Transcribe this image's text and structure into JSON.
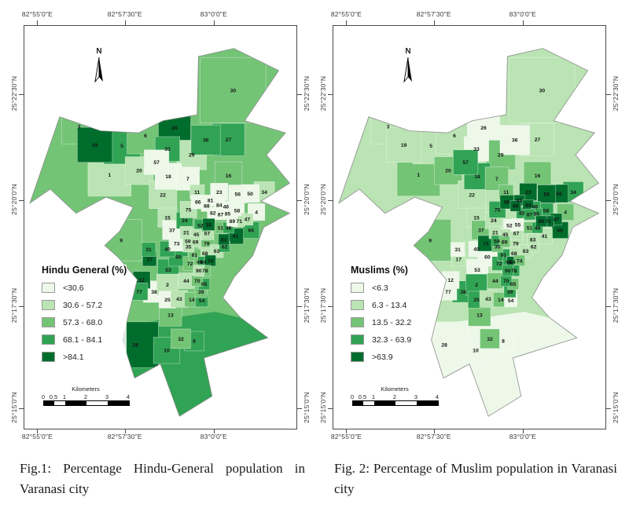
{
  "figure": {
    "north_label": "N",
    "axes": {
      "longitude_labels": [
        "82°55'0\"E",
        "82°57'30\"E",
        "83°0'0\"E"
      ],
      "latitude_labels": [
        "25°22'30\"N",
        "25°20'0\"N",
        "25°17'30\"N",
        "25°15'0\"N"
      ]
    },
    "scale_bar": {
      "title": "Kilometers",
      "ticks": [
        "0",
        "0.5",
        "1",
        "2",
        "3",
        "4"
      ]
    },
    "maps": [
      {
        "id": "hindu",
        "legend_title": "Hindu General (%)",
        "legend_classes": [
          {
            "label": "<30.6",
            "color": "#edf8e9"
          },
          {
            "label": "30.6 - 57.2",
            "color": "#bae4b3"
          },
          {
            "label": "57.3 - 68.0",
            "color": "#74c476"
          },
          {
            "label": "68.1 - 84.1",
            "color": "#31a354"
          },
          {
            "label": ">84.1",
            "color": "#006d2c"
          }
        ],
        "base_color": "#74c476",
        "south_color": "#31a354",
        "caption": "Fig.1: Percentage Hindu-General population in Varanasi city"
      },
      {
        "id": "muslim",
        "legend_title": "Muslims (%)",
        "legend_classes": [
          {
            "label": "<6.3",
            "color": "#edf8e9"
          },
          {
            "label": "6.3 - 13.4",
            "color": "#bae4b3"
          },
          {
            "label": "13.5 - 32.2",
            "color": "#74c476"
          },
          {
            "label": "32.3 - 63.9",
            "color": "#31a354"
          },
          {
            "label": ">63.9",
            "color": "#006d2c"
          }
        ],
        "base_color": "#bae4b3",
        "south_color": "#edf8e9",
        "caption": "Fig. 2: Percentage of Muslim population in Varanasi city"
      }
    ]
  },
  "chart_data": {
    "type": "choropleth-pair",
    "subject": "Ward-wise population share, Varanasi city",
    "class_colors": [
      "#edf8e9",
      "#bae4b3",
      "#74c476",
      "#31a354",
      "#006d2c"
    ],
    "hindu_class_breaks": [
      "<30.6",
      "30.6 - 57.2",
      "57.3 - 68.0",
      "68.1 - 84.1",
      ">84.1"
    ],
    "muslim_class_breaks": [
      "<6.3",
      "6.3 - 13.4",
      "13.5 - 32.2",
      "32.3 - 63.9",
      ">63.9"
    ],
    "wards_note": "entries are [ward_number, x_pct, y_pct, hindu_class_1to5, muslim_class_1to5]",
    "wards": [
      [
        1,
        31.3,
        36.9,
        2,
        3
      ],
      [
        2,
        52.6,
        64.3,
        2,
        4
      ],
      [
        3,
        20.1,
        24.9,
        3,
        2
      ],
      [
        4,
        85.3,
        46.2,
        1,
        3
      ],
      [
        5,
        35.9,
        29.7,
        4,
        2
      ],
      [
        6,
        44.5,
        27.2,
        3,
        2
      ],
      [
        7,
        60.1,
        37.9,
        1,
        3
      ],
      [
        8,
        62.4,
        78.3,
        4,
        1
      ],
      [
        9,
        35.6,
        53.2,
        3,
        3
      ],
      [
        10,
        52.3,
        80.6,
        4,
        1
      ],
      [
        11,
        63.5,
        41.2,
        2,
        3
      ],
      [
        12,
        43.1,
        63.1,
        5,
        1
      ],
      [
        13,
        53.7,
        71.8,
        3,
        3
      ],
      [
        14,
        61.5,
        68.0,
        3,
        3
      ],
      [
        15,
        52.6,
        47.6,
        2,
        2
      ],
      [
        16,
        75.0,
        37.1,
        3,
        3
      ],
      [
        17,
        46.0,
        57.9,
        5,
        2
      ],
      [
        18,
        52.9,
        37.3,
        1,
        4
      ],
      [
        19,
        25.9,
        29.5,
        5,
        2
      ],
      [
        20,
        42.2,
        35.9,
        2,
        3
      ],
      [
        21,
        59.5,
        51.3,
        2,
        2
      ],
      [
        22,
        50.9,
        41.9,
        2,
        2
      ],
      [
        23,
        71.6,
        41.2,
        1,
        5
      ],
      [
        24,
        58.9,
        48.3,
        4,
        2
      ],
      [
        25,
        52.6,
        68.0,
        1,
        4
      ],
      [
        26,
        55.2,
        25.2,
        5,
        1
      ],
      [
        27,
        75.0,
        28.2,
        4,
        2
      ],
      [
        28,
        40.8,
        79.2,
        5,
        1
      ],
      [
        29,
        61.5,
        32.0,
        2,
        3
      ],
      [
        30,
        76.7,
        15.9,
        3,
        2
      ],
      [
        31,
        45.7,
        55.5,
        4,
        1
      ],
      [
        32,
        57.5,
        77.7,
        3,
        3
      ],
      [
        33,
        52.6,
        30.5,
        4,
        1
      ],
      [
        34,
        88.2,
        41.2,
        2,
        4
      ],
      [
        35,
        60.3,
        54.8,
        2,
        3
      ],
      [
        36,
        66.7,
        28.3,
        4,
        1
      ],
      [
        37,
        54.3,
        50.7,
        1,
        3
      ],
      [
        38,
        47.7,
        66.0,
        1,
        4
      ],
      [
        39,
        64.9,
        66.0,
        3,
        4
      ],
      [
        40,
        52.6,
        55.4,
        4,
        1
      ],
      [
        41,
        77.6,
        52.2,
        5,
        2
      ],
      [
        43,
        56.9,
        67.8,
        2,
        2
      ],
      [
        44,
        59.5,
        63.3,
        2,
        3
      ],
      [
        45,
        63.2,
        51.8,
        2,
        2
      ],
      [
        46,
        74.1,
        44.9,
        1,
        4
      ],
      [
        47,
        81.9,
        48.0,
        2,
        5
      ],
      [
        48,
        75.0,
        50.1,
        4,
        4
      ],
      [
        49,
        64.4,
        58.6,
        3,
        4
      ],
      [
        50,
        83.0,
        41.6,
        1,
        5
      ],
      [
        51,
        72.1,
        50.1,
        3,
        3
      ],
      [
        52,
        64.7,
        49.5,
        4,
        1
      ],
      [
        53,
        52.9,
        60.6,
        4,
        1
      ],
      [
        54,
        65.2,
        68.2,
        4,
        1
      ],
      [
        55,
        67.8,
        49.3,
        5,
        1
      ],
      [
        56,
        78.4,
        41.7,
        1,
        5
      ],
      [
        57,
        48.6,
        33.8,
        1,
        4
      ],
      [
        58,
        78.2,
        45.8,
        1,
        4
      ],
      [
        59,
        60.1,
        53.4,
        2,
        4
      ],
      [
        60,
        56.6,
        57.3,
        4,
        1
      ],
      [
        61,
        62.6,
        56.9,
        3,
        4
      ],
      [
        62,
        73.6,
        54.8,
        4,
        2
      ],
      [
        63,
        70.7,
        55.9,
        2,
        2
      ],
      [
        64,
        65.8,
        58.6,
        4,
        5
      ],
      [
        65,
        66.1,
        64.1,
        4,
        3
      ],
      [
        66,
        83.3,
        50.7,
        4,
        5
      ],
      [
        67,
        67.2,
        51.5,
        2,
        2
      ],
      [
        68,
        66.4,
        56.5,
        2,
        2
      ],
      [
        69,
        62.9,
        53.6,
        2,
        3
      ],
      [
        70,
        63.5,
        63.3,
        3,
        4
      ],
      [
        71,
        79.0,
        48.5,
        2,
        5
      ],
      [
        72,
        60.9,
        59.0,
        3,
        4
      ],
      [
        73,
        56.0,
        54.0,
        1,
        5
      ],
      [
        74,
        68.4,
        58.3,
        5,
        3
      ],
      [
        75,
        60.3,
        45.6,
        2,
        4
      ],
      [
        77,
        42.2,
        66.0,
        4,
        1
      ],
      [
        78,
        66.4,
        60.8,
        3,
        4
      ],
      [
        79,
        67.0,
        54.0,
        3,
        2
      ],
      [
        81,
        68.4,
        43.3,
        1,
        5
      ],
      [
        82,
        69.3,
        46.4,
        1,
        4
      ],
      [
        83,
        73.3,
        53.0,
        5,
        2
      ],
      [
        84,
        71.6,
        44.5,
        1,
        5
      ],
      [
        85,
        74.7,
        46.6,
        1,
        4
      ],
      [
        86,
        63.8,
        43.7,
        1,
        5
      ],
      [
        87,
        72.1,
        46.8,
        1,
        4
      ],
      [
        88,
        67.0,
        44.7,
        1,
        5
      ],
      [
        89,
        76.4,
        48.5,
        1,
        5
      ],
      [
        90,
        64.1,
        60.8,
        2,
        4
      ]
    ],
    "outline": [
      [
        2,
        44
      ],
      [
        13,
        22.5
      ],
      [
        28,
        26
      ],
      [
        42,
        26.5
      ],
      [
        51,
        23.5
      ],
      [
        63.5,
        22
      ],
      [
        64,
        7.5
      ],
      [
        77,
        5.5
      ],
      [
        93.5,
        11
      ],
      [
        81,
        23.5
      ],
      [
        96,
        26.5
      ],
      [
        89,
        32
      ],
      [
        97.5,
        39
      ],
      [
        87,
        43.5
      ],
      [
        97.5,
        46.5
      ],
      [
        88,
        50
      ],
      [
        84,
        57
      ],
      [
        77,
        62.5
      ],
      [
        73,
        67.5
      ],
      [
        79.5,
        72.5
      ],
      [
        89.5,
        77.5
      ],
      [
        66,
        82.5
      ],
      [
        69,
        92
      ],
      [
        57,
        97
      ],
      [
        50,
        84
      ],
      [
        40.5,
        87.5
      ],
      [
        36,
        78
      ],
      [
        41.5,
        63
      ],
      [
        34.5,
        57.5
      ],
      [
        29.5,
        54.5
      ],
      [
        35,
        51
      ],
      [
        40,
        45
      ],
      [
        30,
        42.5
      ],
      [
        19,
        46.5
      ],
      [
        9.5,
        40.5
      ]
    ],
    "south_patch": [
      [
        36,
        78
      ],
      [
        41.5,
        74
      ],
      [
        50,
        73
      ],
      [
        60,
        72
      ],
      [
        70,
        71
      ],
      [
        79.5,
        72.5
      ],
      [
        89.5,
        77.5
      ],
      [
        66,
        82.5
      ],
      [
        69,
        92
      ],
      [
        57,
        97
      ],
      [
        50,
        84
      ],
      [
        40.5,
        87.5
      ]
    ]
  }
}
